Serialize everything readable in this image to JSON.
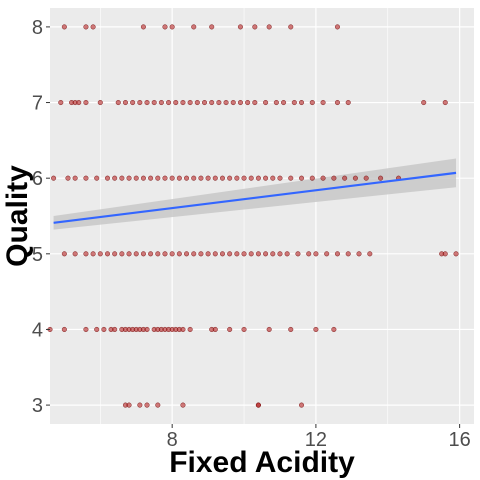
{
  "chart_data": {
    "type": "scatter",
    "title": "",
    "xlabel": "Fixed Acidity",
    "ylabel": "Quality",
    "xlim": [
      4.6,
      16.4
    ],
    "ylim": [
      2.75,
      8.25
    ],
    "x_ticks": [
      8,
      12,
      16
    ],
    "x_minor_ticks": [
      6,
      10,
      14
    ],
    "y_ticks": [
      3,
      4,
      5,
      6,
      7,
      8
    ],
    "grid": true,
    "legend": "none",
    "colors": {
      "panel": "#ebebeb",
      "grid": "#ffffff",
      "point_fill": "#b22222",
      "point_stroke": "#6b0000",
      "trend_line": "#3366ff",
      "confidence_band": "#c8c8c8"
    },
    "series": [
      {
        "values_by_quality": {
          "3": [
            6.7,
            6.8,
            7.1,
            7.3,
            7.6,
            8.3,
            10.4,
            10.4,
            11.6
          ],
          "4": [
            4.6,
            5.0,
            5.6,
            5.9,
            6.1,
            6.3,
            6.4,
            6.6,
            6.7,
            6.8,
            6.9,
            7.0,
            7.1,
            7.2,
            7.3,
            7.5,
            7.6,
            7.7,
            7.8,
            7.9,
            8.0,
            8.1,
            8.2,
            8.3,
            8.5,
            9.1,
            9.2,
            9.6,
            10.0,
            10.7,
            11.3,
            12.0,
            12.5
          ],
          "5": [
            5.0,
            5.3,
            5.6,
            5.8,
            6.0,
            6.2,
            6.4,
            6.6,
            6.8,
            7.0,
            7.2,
            7.4,
            7.6,
            7.8,
            8.0,
            8.2,
            8.4,
            8.6,
            8.8,
            9.0,
            9.2,
            9.4,
            9.6,
            9.8,
            10.0,
            10.2,
            10.4,
            10.6,
            10.8,
            11.0,
            11.2,
            11.5,
            11.8,
            12.0,
            12.3,
            12.6,
            12.9,
            13.2,
            13.5,
            15.5,
            15.6,
            15.9
          ],
          "6": [
            4.7,
            5.1,
            5.3,
            5.6,
            5.9,
            6.2,
            6.4,
            6.6,
            6.8,
            7.0,
            7.2,
            7.4,
            7.6,
            7.8,
            8.0,
            8.2,
            8.4,
            8.6,
            8.8,
            9.0,
            9.2,
            9.4,
            9.6,
            9.8,
            10.0,
            10.2,
            10.4,
            10.6,
            10.8,
            11.0,
            11.3,
            11.6,
            11.9,
            12.2,
            12.5,
            12.8,
            13.1,
            13.4,
            13.8,
            14.3
          ],
          "7": [
            4.9,
            5.2,
            5.3,
            5.4,
            5.6,
            6.0,
            6.5,
            6.7,
            6.9,
            7.1,
            7.3,
            7.5,
            7.7,
            7.9,
            8.1,
            8.3,
            8.5,
            8.7,
            8.9,
            9.1,
            9.3,
            9.5,
            9.7,
            9.9,
            10.1,
            10.3,
            10.6,
            10.9,
            11.1,
            11.4,
            11.6,
            11.9,
            12.2,
            12.6,
            12.9,
            15.0,
            15.6
          ],
          "8": [
            5.0,
            5.6,
            5.8,
            7.2,
            7.8,
            8.0,
            8.6,
            9.1,
            9.9,
            10.3,
            10.7,
            11.3,
            12.6
          ]
        }
      }
    ],
    "trend": {
      "method": "linear",
      "x": [
        4.7,
        15.9
      ],
      "y": [
        5.41,
        6.07
      ],
      "ci_low": [
        5.32,
        5.88
      ],
      "ci_high": [
        5.5,
        6.26
      ]
    }
  }
}
